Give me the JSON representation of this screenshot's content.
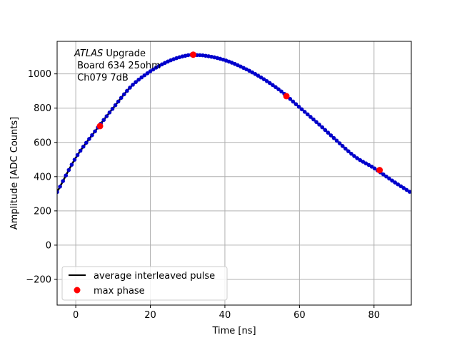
{
  "chart_data": {
    "type": "scatter",
    "title": "",
    "xlabel": "Time [ns]",
    "ylabel": "Amplitude [ADC Counts]",
    "xlim": [
      -5,
      90
    ],
    "ylim": [
      -350,
      1190
    ],
    "xticks": [
      0,
      20,
      40,
      60,
      80
    ],
    "yticks": [
      -200,
      0,
      200,
      400,
      600,
      800,
      1000
    ],
    "xtick_labels": [
      "0",
      "20",
      "40",
      "60",
      "80"
    ],
    "ytick_labels": [
      "−200",
      "0",
      "200",
      "400",
      "600",
      "800",
      "1000"
    ],
    "grid": true,
    "legend_position": "lower-left",
    "annotation": {
      "italic": "ATLAS",
      "rest": " Upgrade",
      "line2": " Board 634 25ohm",
      "line3": " Ch079 7dB"
    },
    "series": [
      {
        "name": "average interleaved pulse",
        "kind": "line-with-markers",
        "line_color": "#000000",
        "marker_color": "#0000cc",
        "x": [
          -5,
          0,
          5,
          10,
          15,
          20,
          25,
          30,
          32,
          35,
          40,
          45,
          50,
          55,
          60,
          65,
          70,
          75,
          80,
          85,
          90
        ],
        "y": [
          310,
          510,
          660,
          800,
          930,
          1015,
          1075,
          1108,
          1110,
          1105,
          1080,
          1035,
          975,
          900,
          805,
          710,
          610,
          515,
          450,
          375,
          305
        ]
      },
      {
        "name": "max phase",
        "kind": "scatter",
        "color": "#ff0000",
        "x": [
          6.5,
          31.5,
          56.5,
          81.5
        ],
        "y": [
          695,
          1112,
          870,
          438
        ]
      }
    ]
  }
}
